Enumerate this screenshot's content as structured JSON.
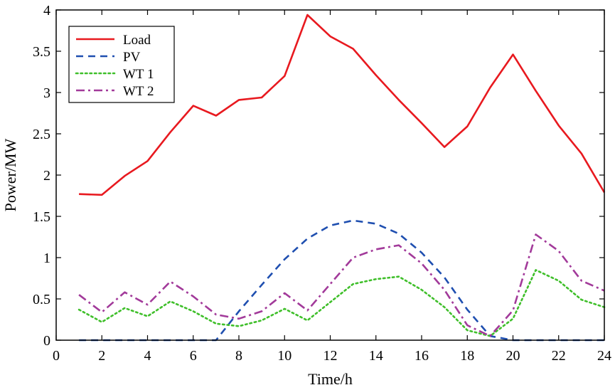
{
  "chart_data": {
    "type": "line",
    "xlabel": "Time/h",
    "ylabel": "Power/MW",
    "xlim": [
      0,
      24
    ],
    "ylim": [
      0,
      4
    ],
    "xticks": [
      0,
      2,
      4,
      6,
      8,
      10,
      12,
      14,
      16,
      18,
      20,
      22,
      24
    ],
    "yticks": [
      0,
      0.5,
      1,
      1.5,
      2,
      2.5,
      3,
      3.5,
      4
    ],
    "xtick_labels": [
      "0",
      "2",
      "4",
      "6",
      "8",
      "10",
      "12",
      "14",
      "16",
      "18",
      "20",
      "22",
      "24"
    ],
    "ytick_labels": [
      "0",
      "0.5",
      "1",
      "1.5",
      "2",
      "2.5",
      "3",
      "3.5",
      "4"
    ],
    "grid": false,
    "legend_position": "top-left",
    "x": [
      1,
      2,
      3,
      4,
      5,
      6,
      7,
      8,
      9,
      10,
      11,
      12,
      13,
      14,
      15,
      16,
      17,
      18,
      19,
      20,
      21,
      22,
      23,
      24
    ],
    "series": [
      {
        "name": "Load",
        "color": "#e8191f",
        "style": "solid",
        "values": [
          1.77,
          1.76,
          1.99,
          2.17,
          2.52,
          2.84,
          2.72,
          2.91,
          2.94,
          3.2,
          3.94,
          3.68,
          3.53,
          3.21,
          2.91,
          2.63,
          2.34,
          2.59,
          3.06,
          3.46,
          3.02,
          2.6,
          2.26,
          1.79
        ]
      },
      {
        "name": "PV",
        "color": "#1f4fb0",
        "style": "dashed",
        "values": [
          0,
          0,
          0,
          0,
          0,
          0,
          0,
          0.35,
          0.67,
          0.98,
          1.23,
          1.39,
          1.45,
          1.41,
          1.29,
          1.06,
          0.76,
          0.37,
          0.05,
          0,
          0,
          0,
          0,
          0
        ]
      },
      {
        "name": "WT 1",
        "color": "#3fbf2a",
        "style": "dotted",
        "values": [
          0.37,
          0.22,
          0.39,
          0.29,
          0.47,
          0.35,
          0.2,
          0.17,
          0.24,
          0.38,
          0.24,
          0.46,
          0.68,
          0.74,
          0.77,
          0.61,
          0.4,
          0.12,
          0.05,
          0.26,
          0.85,
          0.72,
          0.49,
          0.4
        ]
      },
      {
        "name": "WT 2",
        "color": "#a23a9a",
        "style": "dashdot",
        "values": [
          0.55,
          0.34,
          0.58,
          0.43,
          0.71,
          0.53,
          0.31,
          0.26,
          0.35,
          0.57,
          0.36,
          0.68,
          1.0,
          1.1,
          1.15,
          0.93,
          0.61,
          0.18,
          0.05,
          0.36,
          1.28,
          1.08,
          0.72,
          0.6
        ]
      }
    ]
  }
}
